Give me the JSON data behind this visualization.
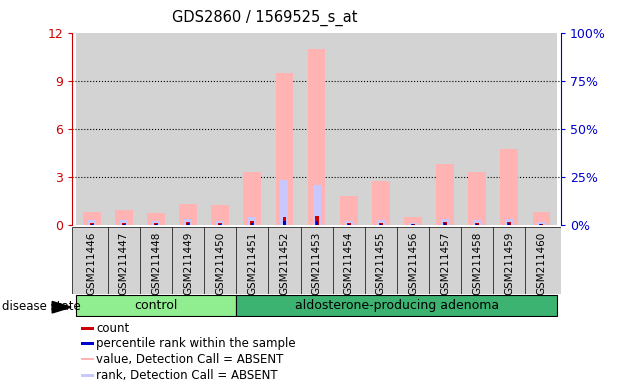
{
  "title": "GDS2860 / 1569525_s_at",
  "samples": [
    "GSM211446",
    "GSM211447",
    "GSM211448",
    "GSM211449",
    "GSM211450",
    "GSM211451",
    "GSM211452",
    "GSM211453",
    "GSM211454",
    "GSM211455",
    "GSM211456",
    "GSM211457",
    "GSM211458",
    "GSM211459",
    "GSM211460"
  ],
  "value_bars": [
    0.8,
    0.9,
    0.7,
    1.3,
    1.2,
    3.3,
    9.5,
    11.0,
    1.8,
    2.7,
    0.5,
    3.8,
    3.3,
    4.7,
    0.8
  ],
  "rank_bars": [
    0.3,
    0.3,
    0.2,
    0.35,
    0.25,
    0.45,
    2.8,
    2.5,
    0.2,
    0.3,
    0.1,
    0.35,
    0.3,
    0.35,
    0.15
  ],
  "count_bars": [
    0.12,
    0.12,
    0.08,
    0.18,
    0.12,
    0.25,
    0.5,
    0.55,
    0.08,
    0.12,
    0.04,
    0.18,
    0.12,
    0.18,
    0.07
  ],
  "percentile_bars": [
    0.06,
    0.06,
    0.04,
    0.09,
    0.06,
    0.12,
    0.22,
    0.25,
    0.04,
    0.06,
    0.02,
    0.09,
    0.06,
    0.09,
    0.035
  ],
  "n_control": 5,
  "n_adenoma": 10,
  "ylim_left": [
    0,
    12
  ],
  "ylim_right": [
    0,
    100
  ],
  "yticks_left": [
    0,
    3,
    6,
    9,
    12
  ],
  "yticks_right": [
    0,
    25,
    50,
    75,
    100
  ],
  "color_value": "#FFB3B3",
  "color_rank": "#C8C8FF",
  "color_count": "#CC0000",
  "color_percentile": "#0000CC",
  "bar_width": 0.55,
  "group_label_control": "control",
  "group_label_adenoma": "aldosterone-producing adenoma",
  "disease_state_label": "disease state",
  "legend_items": [
    {
      "label": "count",
      "color": "#CC0000"
    },
    {
      "label": "percentile rank within the sample",
      "color": "#0000CC"
    },
    {
      "label": "value, Detection Call = ABSENT",
      "color": "#FFB3B3"
    },
    {
      "label": "rank, Detection Call = ABSENT",
      "color": "#C8C8FF"
    }
  ],
  "col_bg_color": "#D3D3D3",
  "plot_bg_color": "#FFFFFF",
  "right_axis_color": "#0000CC",
  "left_axis_color": "#CC0000",
  "grid_color": "#000000",
  "ctrl_color": "#90EE90",
  "aden_color": "#3CB371"
}
